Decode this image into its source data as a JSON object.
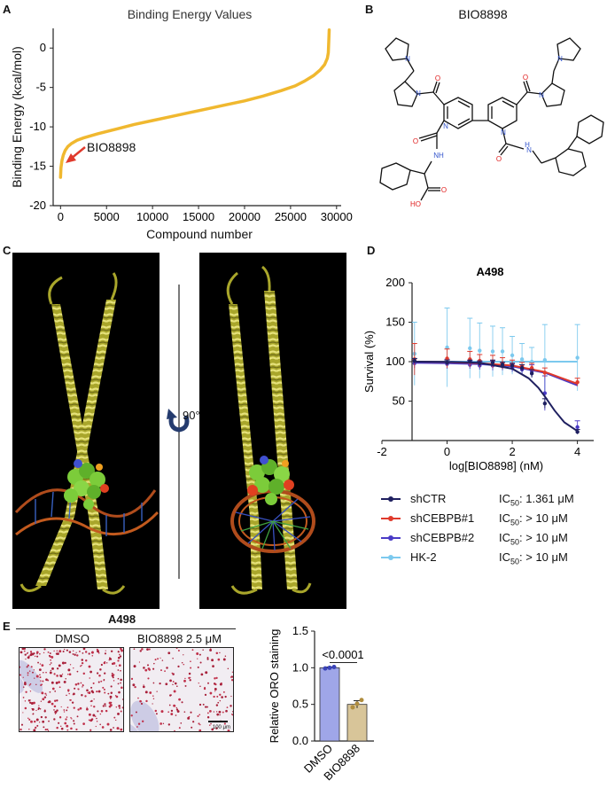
{
  "panels": {
    "a": "A",
    "b": "B",
    "c": "C",
    "d": "D",
    "e": "E"
  },
  "panel_a": {
    "title": "Binding Energy Values",
    "xlabel": "Compound number",
    "ylabel": "Binding Energy (kcal/mol)",
    "annotation": "BIO8898",
    "color": "#f0b82f",
    "arrow_color": "#e03a2c"
  },
  "panel_b": {
    "title": "BIO8898",
    "atom_labels": {
      "nitrogen": "N",
      "nh": "NH",
      "hn": "H",
      "oxygen": "O",
      "ho": "HO"
    }
  },
  "panel_c": {
    "rotation_label": "90°"
  },
  "panel_d": {
    "title": "A498",
    "xlabel": "log[BIO8898] (nM)",
    "ylabel": "Survival (%)",
    "legend": [
      {
        "name": "shCTR",
        "ic_prefix": "IC",
        "ic_sub": "50",
        "ic_value": ": 1.361 μM",
        "color": "#1f2060"
      },
      {
        "name": "shCEBPB#1",
        "ic_prefix": "IC",
        "ic_sub": "50",
        "ic_value": ":  > 10  μM",
        "color": "#e03a2c"
      },
      {
        "name": "shCEBPB#2",
        "ic_prefix": "IC",
        "ic_sub": "50",
        "ic_value": ":  > 10  μM",
        "color": "#4a3bc6"
      },
      {
        "name": "HK-2",
        "ic_prefix": "IC",
        "ic_sub": "50",
        "ic_value": ":  > 10  μM",
        "color": "#7cc9ee"
      }
    ]
  },
  "panel_e": {
    "group_title": "A498",
    "image_labels": [
      "DMSO",
      "BIO8898 2.5 μM"
    ],
    "scale_bar": "100 μm",
    "bar_chart_ylabel": "Relative ORO staining",
    "p_value": "<0.0001",
    "bar_colors": [
      "#9fa6e8",
      "#d8c599"
    ]
  },
  "chart_data": [
    {
      "type": "line",
      "title": "Binding Energy Values",
      "xlabel": "Compound number",
      "ylabel": "Binding Energy (kcal/mol)",
      "xlim": [
        -800,
        30500
      ],
      "ylim": [
        -20,
        2.5
      ],
      "xticks": [
        0,
        5000,
        10000,
        15000,
        20000,
        25000,
        30000
      ],
      "yticks": [
        0,
        -5,
        -10,
        -15,
        -20
      ],
      "x": [
        0,
        50,
        150,
        300,
        500,
        800,
        1200,
        1800,
        2500,
        4000,
        6000,
        8000,
        10000,
        12000,
        14000,
        16000,
        18000,
        20000,
        22000,
        24000,
        25500,
        26500,
        27500,
        28200,
        28700,
        29000,
        29100,
        29150,
        29200
      ],
      "y": [
        -16.4,
        -15.2,
        -14.3,
        -13.6,
        -13.0,
        -12.5,
        -12.1,
        -11.7,
        -11.4,
        -10.9,
        -10.3,
        -9.7,
        -9.2,
        -8.7,
        -8.2,
        -7.7,
        -7.2,
        -6.7,
        -6.1,
        -5.4,
        -4.8,
        -4.2,
        -3.5,
        -2.8,
        -2.1,
        -1.3,
        -0.6,
        0.8,
        2.3
      ],
      "annotation": "BIO8898"
    },
    {
      "type": "line",
      "title": "A498",
      "xlabel": "log[BIO8898] (nM)",
      "ylabel": "Survival (%)",
      "xlim": [
        -2,
        4.5
      ],
      "ylim": [
        0,
        200
      ],
      "xticks": [
        -2,
        0,
        2,
        4
      ],
      "yticks": [
        50,
        100,
        150,
        200
      ],
      "series": [
        {
          "name": "shCTR",
          "x": [
            -1,
            0,
            0.7,
            1,
            1.4,
            1.7,
            2,
            2.3,
            2.6,
            3,
            4
          ],
          "y": [
            101,
            99,
            100,
            98,
            99,
            96,
            95,
            92,
            85,
            47,
            11
          ],
          "err": [
            3,
            3,
            2,
            3,
            3,
            3,
            3,
            4,
            5,
            6,
            3
          ],
          "fit_x": [
            -1,
            0,
            1,
            2,
            2.5,
            2.8,
            3,
            3.3,
            3.6,
            4
          ],
          "fit_y": [
            100,
            99.8,
            98.5,
            91,
            79,
            67,
            56,
            38,
            23,
            12
          ]
        },
        {
          "name": "shCEBPB#1",
          "x": [
            -1,
            0,
            0.7,
            1,
            1.4,
            1.7,
            2,
            2.3,
            2.6,
            3,
            4
          ],
          "y": [
            103,
            104,
            103,
            101,
            100,
            98,
            96,
            94,
            92,
            86,
            74
          ],
          "err": [
            20,
            12,
            10,
            8,
            8,
            7,
            6,
            5,
            6,
            6,
            5
          ],
          "fit_x": [
            -1,
            0,
            1,
            2,
            3,
            4
          ],
          "fit_y": [
            100,
            99.5,
            98,
            95,
            87,
            72
          ]
        },
        {
          "name": "shCEBPB#2",
          "x": [
            -1,
            0,
            0.7,
            1,
            1.4,
            1.7,
            2,
            2.3,
            2.6,
            3,
            4
          ],
          "y": [
            98,
            97,
            96,
            95,
            95,
            94,
            92,
            90,
            88,
            60,
            17
          ],
          "err": [
            6,
            6,
            5,
            5,
            6,
            5,
            5,
            6,
            8,
            22,
            8
          ],
          "fit_x": [
            -1,
            0,
            1,
            2,
            3,
            4
          ],
          "fit_y": [
            98.5,
            98,
            97,
            94,
            86,
            70
          ]
        },
        {
          "name": "HK-2",
          "x": [
            -1,
            0,
            0.7,
            1,
            1.4,
            1.7,
            2,
            2.3,
            2.6,
            3,
            4
          ],
          "y": [
            110,
            118,
            117,
            114,
            113,
            113,
            108,
            103,
            100,
            102,
            105
          ],
          "err": [
            40,
            50,
            38,
            35,
            32,
            30,
            24,
            20,
            18,
            45,
            42
          ],
          "fit_x": [
            -1,
            0,
            1,
            2,
            3,
            4
          ],
          "fit_y": [
            100,
            100,
            100,
            100,
            100,
            100
          ]
        }
      ]
    },
    {
      "type": "bar",
      "ylabel": "Relative ORO staining",
      "categories": [
        "DMSO",
        "BIO8898"
      ],
      "values": [
        1.0,
        0.5
      ],
      "err": [
        0.01,
        0.05
      ],
      "points": [
        [
          0.99,
          1.0,
          1.01
        ],
        [
          0.46,
          0.51,
          0.56
        ]
      ],
      "ylim": [
        0,
        1.5
      ],
      "yticks": [
        0.0,
        0.5,
        1.0,
        1.5
      ],
      "p_value": "<0.0001"
    }
  ]
}
